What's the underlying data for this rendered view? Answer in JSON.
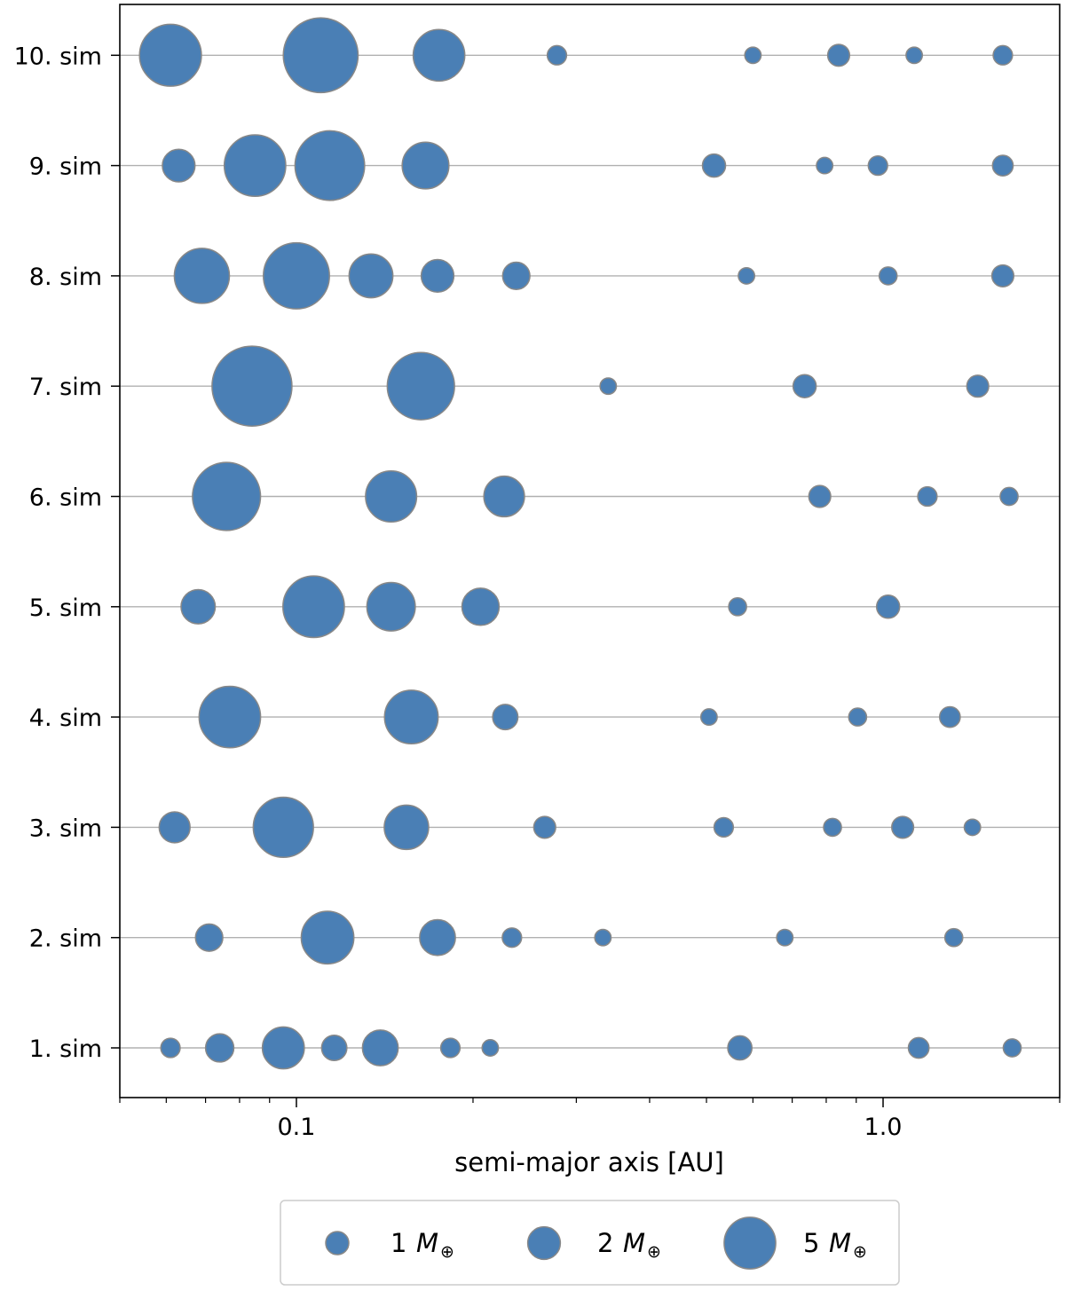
{
  "chart_data": {
    "type": "scatter",
    "xlabel": "semi-major axis [AU]",
    "xscale": "log",
    "xlim": [
      0.05,
      2.0
    ],
    "xticks": [
      {
        "value": 0.1,
        "label": "0.1"
      },
      {
        "value": 1.0,
        "label": "1.0"
      }
    ],
    "grid": "horizontal",
    "marker_color": "#4a7fb5",
    "marker_edge_color": "#888888",
    "rows": [
      {
        "label": "1. sim",
        "points": [
          {
            "a": 0.061,
            "m": 0.7
          },
          {
            "a": 0.074,
            "m": 1.5
          },
          {
            "a": 0.095,
            "m": 3.3
          },
          {
            "a": 0.116,
            "m": 1.2
          },
          {
            "a": 0.139,
            "m": 2.4
          },
          {
            "a": 0.183,
            "m": 0.7
          },
          {
            "a": 0.214,
            "m": 0.5
          },
          {
            "a": 0.57,
            "m": 1.1
          },
          {
            "a": 1.15,
            "m": 0.8
          },
          {
            "a": 1.66,
            "m": 0.6
          }
        ]
      },
      {
        "label": "2. sim",
        "points": [
          {
            "a": 0.071,
            "m": 1.4
          },
          {
            "a": 0.113,
            "m": 5.2
          },
          {
            "a": 0.174,
            "m": 2.4
          },
          {
            "a": 0.233,
            "m": 0.7
          },
          {
            "a": 0.333,
            "m": 0.5
          },
          {
            "a": 0.68,
            "m": 0.5
          },
          {
            "a": 1.32,
            "m": 0.6
          }
        ]
      },
      {
        "label": "3. sim",
        "points": [
          {
            "a": 0.062,
            "m": 1.8
          },
          {
            "a": 0.095,
            "m": 6.8
          },
          {
            "a": 0.154,
            "m": 3.7
          },
          {
            "a": 0.265,
            "m": 0.9
          },
          {
            "a": 0.535,
            "m": 0.7
          },
          {
            "a": 0.82,
            "m": 0.6
          },
          {
            "a": 1.08,
            "m": 0.9
          },
          {
            "a": 1.42,
            "m": 0.5
          }
        ]
      },
      {
        "label": "4. sim",
        "points": [
          {
            "a": 0.077,
            "m": 7.1
          },
          {
            "a": 0.157,
            "m": 5.4
          },
          {
            "a": 0.227,
            "m": 1.2
          },
          {
            "a": 0.505,
            "m": 0.5
          },
          {
            "a": 0.905,
            "m": 0.6
          },
          {
            "a": 1.3,
            "m": 0.8
          }
        ]
      },
      {
        "label": "5. sim",
        "points": [
          {
            "a": 0.068,
            "m": 2.2
          },
          {
            "a": 0.107,
            "m": 7.1
          },
          {
            "a": 0.145,
            "m": 4.4
          },
          {
            "a": 0.206,
            "m": 2.6
          },
          {
            "a": 0.565,
            "m": 0.6
          },
          {
            "a": 1.02,
            "m": 1.0
          }
        ]
      },
      {
        "label": "6. sim",
        "points": [
          {
            "a": 0.076,
            "m": 8.7
          },
          {
            "a": 0.145,
            "m": 4.9
          },
          {
            "a": 0.226,
            "m": 3.1
          },
          {
            "a": 0.78,
            "m": 0.9
          },
          {
            "a": 1.19,
            "m": 0.7
          },
          {
            "a": 1.64,
            "m": 0.6
          }
        ]
      },
      {
        "label": "7. sim",
        "points": [
          {
            "a": 0.084,
            "m": 12.0
          },
          {
            "a": 0.163,
            "m": 8.5
          },
          {
            "a": 0.34,
            "m": 0.5
          },
          {
            "a": 0.735,
            "m": 1.0
          },
          {
            "a": 1.45,
            "m": 0.9
          }
        ]
      },
      {
        "label": "8. sim",
        "points": [
          {
            "a": 0.069,
            "m": 5.7
          },
          {
            "a": 0.1,
            "m": 8.2
          },
          {
            "a": 0.134,
            "m": 3.6
          },
          {
            "a": 0.174,
            "m": 2.0
          },
          {
            "a": 0.237,
            "m": 1.4
          },
          {
            "a": 0.585,
            "m": 0.5
          },
          {
            "a": 1.02,
            "m": 0.6
          },
          {
            "a": 1.6,
            "m": 0.9
          }
        ]
      },
      {
        "label": "9. sim",
        "points": [
          {
            "a": 0.063,
            "m": 2.0
          },
          {
            "a": 0.085,
            "m": 7.1
          },
          {
            "a": 0.114,
            "m": 9.1
          },
          {
            "a": 0.166,
            "m": 4.1
          },
          {
            "a": 0.515,
            "m": 1.0
          },
          {
            "a": 0.795,
            "m": 0.5
          },
          {
            "a": 0.98,
            "m": 0.7
          },
          {
            "a": 1.6,
            "m": 0.8
          }
        ]
      },
      {
        "label": "10. sim",
        "points": [
          {
            "a": 0.061,
            "m": 7.2
          },
          {
            "a": 0.11,
            "m": 10.5
          },
          {
            "a": 0.175,
            "m": 5.0
          },
          {
            "a": 0.278,
            "m": 0.7
          },
          {
            "a": 0.6,
            "m": 0.5
          },
          {
            "a": 0.84,
            "m": 0.9
          },
          {
            "a": 1.13,
            "m": 0.5
          },
          {
            "a": 1.6,
            "m": 0.7
          }
        ]
      }
    ],
    "legend": {
      "placement": "bottom",
      "entries": [
        {
          "mass": 1,
          "label": "1",
          "symbol": "M",
          "subscript": "⊕"
        },
        {
          "mass": 2,
          "label": "2",
          "symbol": "M",
          "subscript": "⊕"
        },
        {
          "mass": 5,
          "label": "5",
          "symbol": "M",
          "subscript": "⊕"
        }
      ]
    }
  }
}
